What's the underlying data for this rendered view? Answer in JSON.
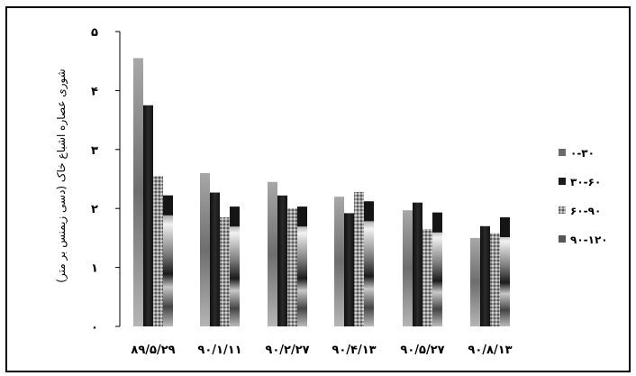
{
  "chart_data": {
    "type": "bar",
    "categories": [
      "۸۹/۵/۲۹",
      "۹۰/۱/۱۱",
      "۹۰/۲/۲۷",
      "۹۰/۴/۱۳",
      "۹۰/۵/۲۷",
      "۹۰/۸/۱۳"
    ],
    "ylabel": "شوری عصاره اشباع خاک (دسی زیمنس بر متر)",
    "xlabel": "",
    "ylim": [
      0,
      5
    ],
    "yticks": [
      "۰",
      "۱",
      "۲",
      "۳",
      "۴",
      "۵"
    ],
    "grid": false,
    "legend_position": "right",
    "series": [
      {
        "name": "۰-۳۰",
        "values": [
          4.55,
          2.6,
          2.45,
          2.2,
          1.97,
          1.5
        ]
      },
      {
        "name": "۳۰-۶۰",
        "values": [
          3.75,
          2.27,
          2.22,
          1.92,
          2.1,
          1.7
        ]
      },
      {
        "name": "۶۰-۹۰",
        "values": [
          2.55,
          1.85,
          2.0,
          2.28,
          1.65,
          1.58
        ]
      },
      {
        "name": "۹۰-۱۲۰",
        "values": [
          2.22,
          2.03,
          2.03,
          2.12,
          1.93,
          1.85
        ]
      }
    ],
    "colors": [
      "#707070",
      "#1c1c1c",
      "#8c8c8c",
      "#5a5a5a"
    ]
  }
}
